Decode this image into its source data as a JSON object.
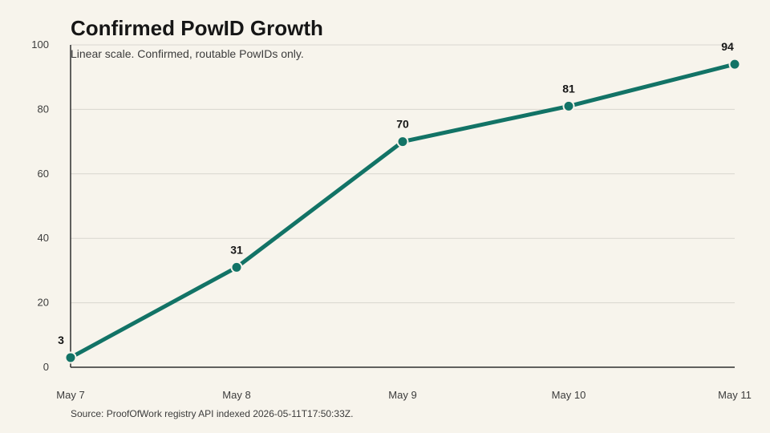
{
  "chart_data": {
    "type": "line",
    "title": "Confirmed PowID Growth",
    "subtitle": "Linear scale. Confirmed, routable PowIDs only.",
    "source": "Source: ProofOfWork registry API indexed 2026-05-11T17:50:33Z.",
    "categories": [
      "May 7",
      "May 8",
      "May 9",
      "May 10",
      "May 11"
    ],
    "values": [
      3,
      31,
      70,
      81,
      94
    ],
    "ylim": [
      0,
      100
    ],
    "yticks": [
      0,
      20,
      40,
      60,
      80,
      100
    ],
    "grid": true,
    "legend": "none",
    "line_color": "#127366"
  }
}
